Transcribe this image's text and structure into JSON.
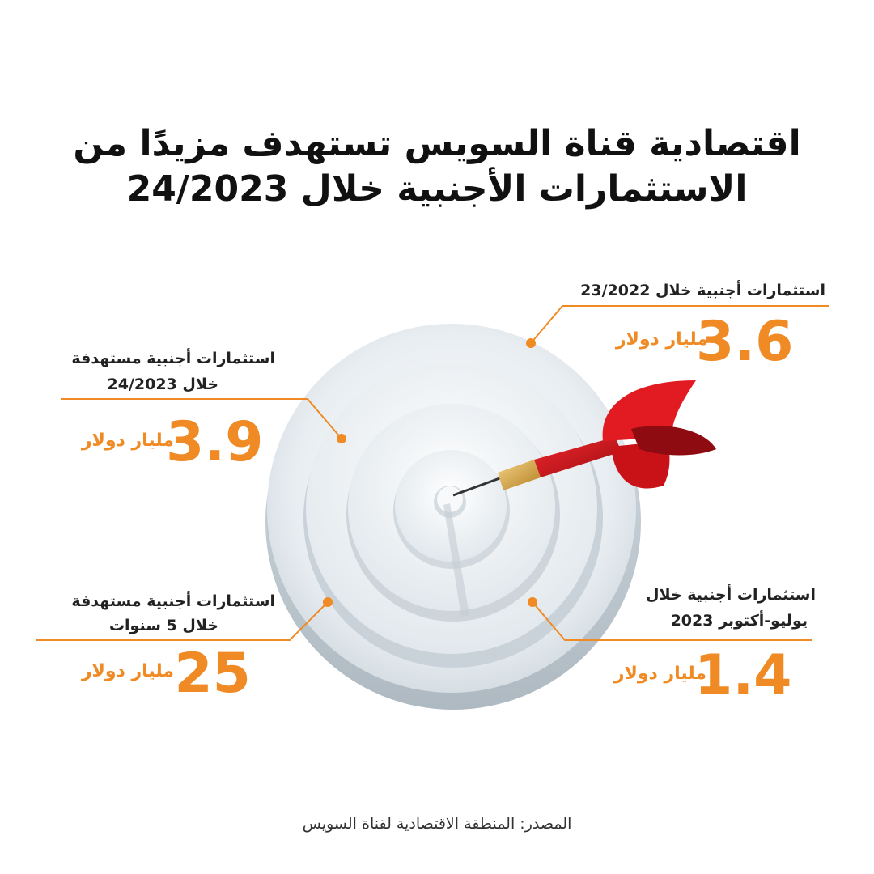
{
  "title": {
    "line1": "اقتصادية قناة السويس تستهدف مزيدًا من",
    "line2": "الاستثمارات الأجنبية خلال 24/2023"
  },
  "callouts": {
    "top_right": {
      "label": "استثمارات أجنبية خلال 23/2022",
      "value": "3.6",
      "unit": "مليار دولار"
    },
    "top_left": {
      "label_line1": "استثمارات أجنبية مستهدفة",
      "label_line2": "خلال 24/2023",
      "value": "3.9",
      "unit": "مليار دولار"
    },
    "bottom_left": {
      "label_line1": "استثمارات أجنبية مستهدفة",
      "label_line2": "خلال 5 سنوات",
      "value": "25",
      "unit": "مليار دولار"
    },
    "bottom_right": {
      "label_line1": "استثمارات أجنبية خلال",
      "label_line2": "يوليو-أكتوبر 2023",
      "value": "1.4",
      "unit": "مليار دولار"
    }
  },
  "source": "المصدر: المنطقة الاقتصادية لقناة السويس",
  "colors": {
    "accent": "#f08a24",
    "dart_red": "#d4141b",
    "dart_brass": "#d9a441",
    "target_light": "#eef3f6"
  },
  "icons": {
    "target": "target-board-icon",
    "dart": "dart-icon"
  }
}
